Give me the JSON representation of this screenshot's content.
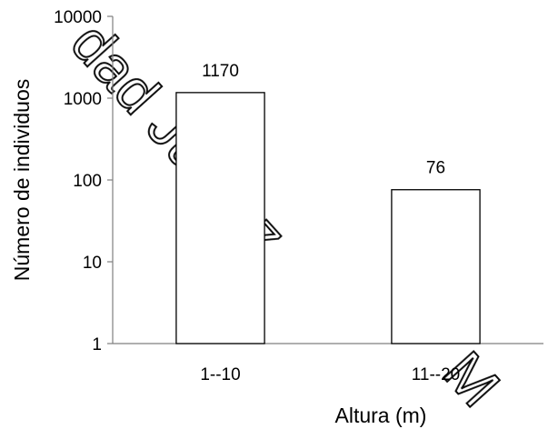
{
  "chart_data": {
    "type": "bar",
    "categories": [
      "1--10",
      "11--20"
    ],
    "values": [
      1170,
      76
    ],
    "data_labels": [
      "1170",
      "76"
    ],
    "xlabel": "Altura (m)",
    "ylabel": "Número de individuos",
    "yscale": "log",
    "ylim": [
      1,
      10000
    ],
    "yticks": [
      "1",
      "10",
      "100",
      "1000",
      "10000"
    ],
    "grid": false,
    "legend": "none",
    "bar_fill": "#ffffff",
    "bar_stroke": "#000000"
  },
  "watermark": {
    "segments": [
      "dad Juárez",
      "M"
    ]
  }
}
